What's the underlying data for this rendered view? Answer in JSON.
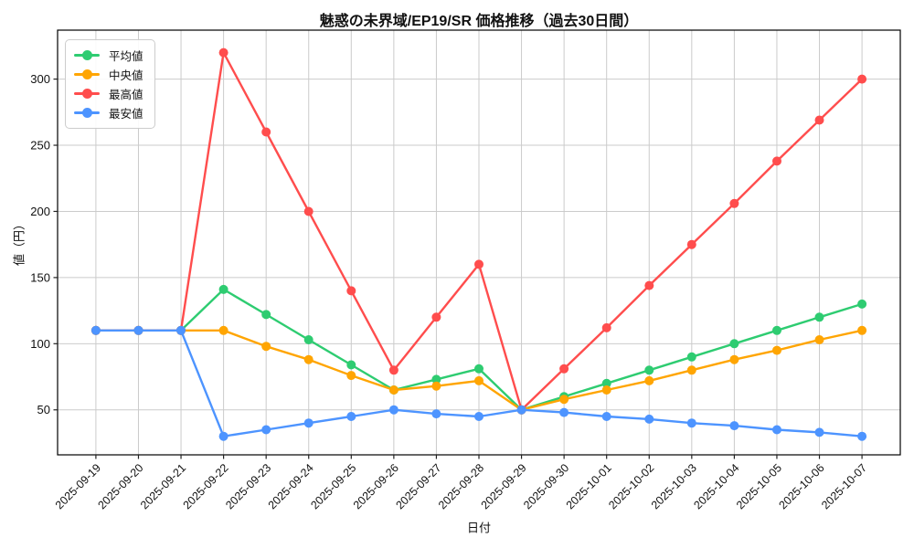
{
  "title": "魅惑の未界域/EP19/SR 価格推移（過去30日間）",
  "chart_data": {
    "type": "line",
    "title": "魅惑の未界域/EP19/SR 価格推移（過去30日間）",
    "xlabel": "日付",
    "ylabel": "値（円）",
    "x": [
      "2025-09-19",
      "2025-09-20",
      "2025-09-21",
      "2025-09-22",
      "2025-09-23",
      "2025-09-24",
      "2025-09-25",
      "2025-09-26",
      "2025-09-27",
      "2025-09-28",
      "2025-09-29",
      "2025-09-30",
      "2025-10-01",
      "2025-10-02",
      "2025-10-03",
      "2025-10-04",
      "2025-10-05",
      "2025-10-06",
      "2025-10-07"
    ],
    "series": [
      {
        "name": "平均値",
        "color": "#2ecc71",
        "values": [
          110,
          110,
          110,
          141,
          122,
          103,
          84,
          65,
          73,
          81,
          50,
          60,
          70,
          80,
          90,
          100,
          110,
          120,
          130
        ]
      },
      {
        "name": "中央値",
        "color": "#ffa502",
        "values": [
          110,
          110,
          110,
          110,
          98,
          88,
          76,
          65,
          68,
          72,
          50,
          58,
          65,
          72,
          80,
          88,
          95,
          103,
          110
        ]
      },
      {
        "name": "最高値",
        "color": "#ff4d4d",
        "values": [
          110,
          110,
          110,
          320,
          260,
          200,
          140,
          80,
          120,
          160,
          50,
          81,
          112,
          144,
          175,
          206,
          238,
          269,
          300
        ]
      },
      {
        "name": "最安値",
        "color": "#4d94ff",
        "values": [
          110,
          110,
          110,
          30,
          35,
          40,
          45,
          50,
          47,
          45,
          50,
          48,
          45,
          43,
          40,
          38,
          35,
          33,
          30
        ]
      }
    ],
    "yticks": [
      50,
      100,
      150,
      200,
      250,
      300
    ],
    "ylim": [
      16,
      337
    ],
    "grid": true,
    "legend_position": "upper left",
    "marker": "circle",
    "grid_color": "#cbcbcb",
    "spine_color": "#000000"
  }
}
